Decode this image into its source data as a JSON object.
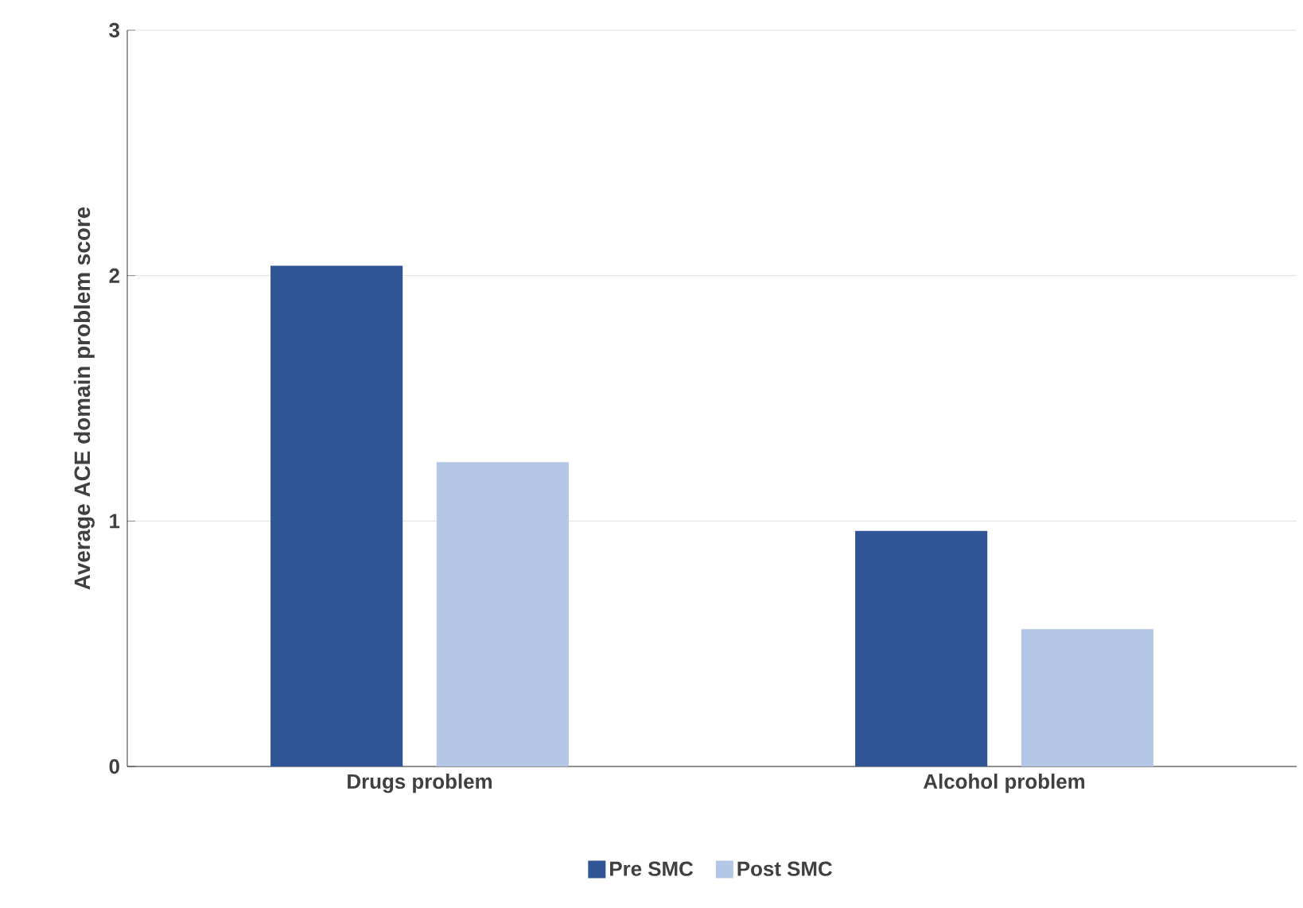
{
  "chart_data": {
    "type": "bar",
    "ylabel": "Average ACE domain problem score",
    "categories": [
      "Drugs problem",
      "Alcohol problem"
    ],
    "series": [
      {
        "name": "Pre SMC",
        "color": "#2f5597",
        "values": [
          2.04,
          0.96
        ]
      },
      {
        "name": "Post SMC",
        "color": "#b4c7e7",
        "values": [
          1.24,
          0.56
        ]
      }
    ],
    "ylim": [
      0,
      3
    ],
    "yticks": [
      0,
      1,
      2,
      3
    ],
    "grid": "y",
    "legend": "bottom"
  }
}
